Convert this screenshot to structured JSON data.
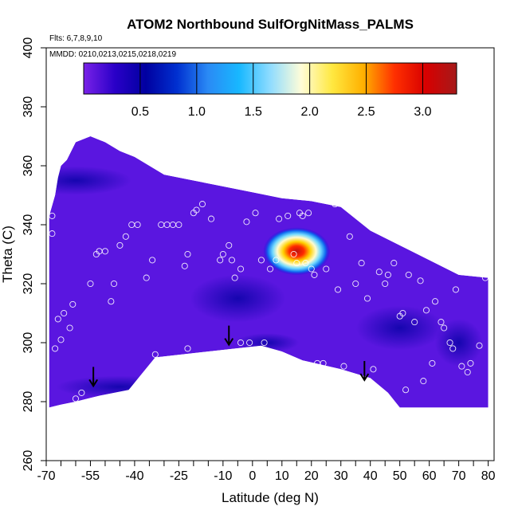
{
  "chart_data": {
    "type": "heatmap",
    "title": "ATOM2 Northbound SulfOrgNitMass_PALMS",
    "subtitle_flights": "Flts: 6,7,8,9,10",
    "subtitle_dates": "MMDD: 0210,0213,0215,0218,0219",
    "xlabel": "Latitude (deg N)",
    "ylabel": "Theta (C)",
    "xlim": [
      -70,
      82
    ],
    "ylim": [
      260,
      400
    ],
    "x_ticks_labeled": [
      "-70",
      "-55",
      "-40",
      "-25",
      "-10",
      "0",
      "10",
      "20",
      "30",
      "40",
      "50",
      "60",
      "70",
      "80"
    ],
    "x_tick_values": [
      -70,
      -55,
      -40,
      -25,
      -10,
      0,
      10,
      20,
      30,
      40,
      50,
      60,
      70,
      80
    ],
    "x_minor_ticks": [
      -65,
      -60,
      -50,
      -45,
      -35,
      -30,
      -20,
      -15,
      -5,
      5,
      15,
      25,
      35,
      45,
      55,
      65,
      75
    ],
    "y_ticks": [
      "260",
      "280",
      "300",
      "320",
      "340",
      "360",
      "380",
      "400"
    ],
    "y_tick_values": [
      260,
      280,
      300,
      320,
      340,
      360,
      380,
      400
    ],
    "colorbar": {
      "ticks": [
        "0.5",
        "1.0",
        "1.5",
        "2.0",
        "2.5",
        "3.0"
      ],
      "tick_values": [
        0.5,
        1.0,
        1.5,
        2.0,
        2.5,
        3.0
      ],
      "range": [
        0,
        3.3
      ],
      "colors": [
        "#7a22e8",
        "#2a00c8",
        "#0000a0",
        "#0030d0",
        "#2a8af5",
        "#18b8ff",
        "#8fdcff",
        "#fffdd8",
        "#ffe840",
        "#ffb000",
        "#ff3000",
        "#d80000",
        "#a51a1a"
      ]
    },
    "field_top_boundary": [
      [
        -69,
        343
      ],
      [
        -67,
        350
      ],
      [
        -66,
        356
      ],
      [
        -65,
        360
      ],
      [
        -63,
        362
      ],
      [
        -60,
        368
      ],
      [
        -55,
        370
      ],
      [
        -50,
        368
      ],
      [
        -45,
        365
      ],
      [
        -40,
        363
      ],
      [
        -30,
        357
      ],
      [
        -20,
        355
      ],
      [
        -10,
        353
      ],
      [
        0,
        351
      ],
      [
        10,
        349
      ],
      [
        20,
        348
      ],
      [
        30,
        346
      ],
      [
        40,
        338
      ],
      [
        50,
        333
      ],
      [
        60,
        328
      ],
      [
        70,
        323
      ],
      [
        80,
        322
      ]
    ],
    "field_bottom_boundary": [
      [
        80,
        278
      ],
      [
        50,
        278
      ],
      [
        46,
        283
      ],
      [
        40,
        288
      ],
      [
        30,
        291
      ],
      [
        17,
        294
      ],
      [
        10,
        297
      ],
      [
        3,
        299
      ],
      [
        -33,
        295
      ],
      [
        -42,
        284
      ],
      [
        -52,
        282
      ],
      [
        -56,
        281
      ],
      [
        -60,
        280
      ],
      [
        -65,
        279
      ],
      [
        -69,
        278
      ]
    ],
    "hotspot": {
      "lat": 15,
      "theta": 331,
      "max_value": 3.2
    },
    "sample_points": [
      [
        -68,
        343
      ],
      [
        -68,
        337
      ],
      [
        -67,
        298
      ],
      [
        -66,
        308
      ],
      [
        -65,
        301
      ],
      [
        -64,
        310
      ],
      [
        -62,
        305
      ],
      [
        -61,
        313
      ],
      [
        -58,
        283
      ],
      [
        -60,
        281
      ],
      [
        -55,
        320
      ],
      [
        -53,
        330
      ],
      [
        -52,
        331
      ],
      [
        -50,
        331
      ],
      [
        -48,
        314
      ],
      [
        -47,
        320
      ],
      [
        -45,
        333
      ],
      [
        -43,
        336
      ],
      [
        -41,
        340
      ],
      [
        -39,
        340
      ],
      [
        -36,
        322
      ],
      [
        -34,
        328
      ],
      [
        -33,
        296
      ],
      [
        -31,
        340
      ],
      [
        -29,
        340
      ],
      [
        -27,
        340
      ],
      [
        -25,
        340
      ],
      [
        -23,
        326
      ],
      [
        -22,
        330
      ],
      [
        -22,
        298
      ],
      [
        -20,
        344
      ],
      [
        -19,
        345
      ],
      [
        -17,
        347
      ],
      [
        -14,
        342
      ],
      [
        -11,
        328
      ],
      [
        -10,
        330
      ],
      [
        -8,
        333
      ],
      [
        -7,
        328
      ],
      [
        -6,
        322
      ],
      [
        -4,
        325
      ],
      [
        -4,
        300
      ],
      [
        -2,
        341
      ],
      [
        -1,
        300
      ],
      [
        1,
        344
      ],
      [
        3,
        328
      ],
      [
        4,
        300
      ],
      [
        6,
        325
      ],
      [
        8,
        328
      ],
      [
        9,
        342
      ],
      [
        10,
        295
      ],
      [
        12,
        343
      ],
      [
        14,
        330
      ],
      [
        15,
        327
      ],
      [
        16,
        344
      ],
      [
        17,
        343
      ],
      [
        18,
        327
      ],
      [
        19,
        344
      ],
      [
        20,
        325
      ],
      [
        21,
        323
      ],
      [
        22,
        293
      ],
      [
        24,
        293
      ],
      [
        25,
        325
      ],
      [
        28,
        347
      ],
      [
        29,
        318
      ],
      [
        31,
        292
      ],
      [
        33,
        336
      ],
      [
        35,
        320
      ],
      [
        37,
        327
      ],
      [
        39,
        315
      ],
      [
        41,
        291
      ],
      [
        43,
        324
      ],
      [
        45,
        320
      ],
      [
        46,
        323
      ],
      [
        48,
        327
      ],
      [
        50,
        309
      ],
      [
        51,
        310
      ],
      [
        52,
        284
      ],
      [
        53,
        323
      ],
      [
        55,
        307
      ],
      [
        57,
        321
      ],
      [
        58,
        287
      ],
      [
        59,
        311
      ],
      [
        61,
        293
      ],
      [
        62,
        314
      ],
      [
        64,
        307
      ],
      [
        65,
        305
      ],
      [
        67,
        300
      ],
      [
        68,
        298
      ],
      [
        69,
        318
      ],
      [
        71,
        292
      ],
      [
        73,
        290
      ],
      [
        74,
        293
      ],
      [
        77,
        299
      ],
      [
        79,
        322
      ]
    ],
    "arrows": [
      [
        -54,
        288
      ],
      [
        -8,
        302
      ],
      [
        38,
        290
      ]
    ]
  }
}
